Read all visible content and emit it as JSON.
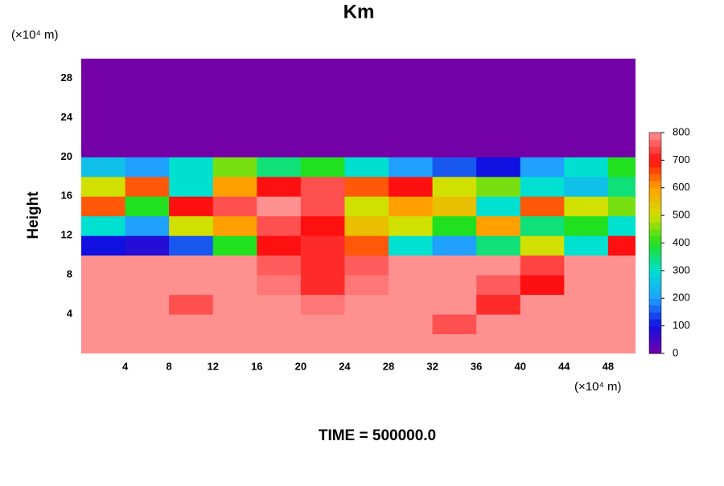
{
  "chart_data": {
    "type": "heatmap",
    "title": "Km",
    "ylabel": "Height",
    "x_unit": "(×10⁴ m)",
    "y_unit": "(×10⁴ m)",
    "footer": "TIME = 500000.0",
    "xlim": [
      0,
      50.5
    ],
    "ylim": [
      0,
      30
    ],
    "xticks": [
      4,
      8,
      12,
      16,
      20,
      24,
      28,
      32,
      36,
      40,
      44,
      48
    ],
    "yticks": [
      4,
      8,
      12,
      16,
      20,
      24,
      28
    ],
    "x": [
      2,
      6,
      10,
      14,
      18,
      22,
      26,
      30,
      34,
      38,
      42,
      46,
      50
    ],
    "y": [
      1,
      3,
      5,
      7,
      9,
      11,
      13,
      15,
      17,
      19,
      21,
      23,
      25,
      27,
      29
    ],
    "z": [
      [
        800,
        800,
        800,
        800,
        800,
        800,
        800,
        800,
        800,
        800,
        800,
        800,
        800
      ],
      [
        800,
        800,
        800,
        800,
        800,
        800,
        800,
        800,
        750,
        800,
        800,
        800,
        800
      ],
      [
        800,
        800,
        750,
        800,
        800,
        780,
        800,
        800,
        800,
        720,
        800,
        800,
        800
      ],
      [
        800,
        800,
        800,
        800,
        780,
        720,
        780,
        800,
        800,
        760,
        700,
        800,
        800
      ],
      [
        800,
        800,
        800,
        800,
        760,
        720,
        760,
        800,
        800,
        800,
        740,
        800,
        800
      ],
      [
        100,
        80,
        150,
        400,
        700,
        720,
        650,
        300,
        200,
        350,
        500,
        300,
        700
      ],
      [
        300,
        200,
        500,
        600,
        750,
        700,
        550,
        500,
        400,
        600,
        350,
        400,
        300
      ],
      [
        650,
        400,
        700,
        750,
        800,
        750,
        500,
        600,
        550,
        300,
        650,
        500,
        450
      ],
      [
        500,
        650,
        300,
        600,
        700,
        750,
        650,
        700,
        500,
        450,
        300,
        250,
        350
      ],
      [
        250,
        200,
        300,
        450,
        350,
        400,
        300,
        200,
        150,
        100,
        200,
        300,
        400
      ],
      [
        0,
        0,
        0,
        0,
        0,
        0,
        0,
        0,
        0,
        0,
        0,
        0,
        0
      ],
      [
        0,
        0,
        0,
        0,
        0,
        0,
        0,
        0,
        0,
        0,
        0,
        0,
        0
      ],
      [
        0,
        0,
        0,
        0,
        0,
        0,
        0,
        0,
        0,
        0,
        0,
        0,
        0
      ],
      [
        0,
        0,
        0,
        0,
        0,
        0,
        0,
        0,
        0,
        0,
        0,
        0,
        0
      ],
      [
        0,
        0,
        0,
        0,
        0,
        0,
        0,
        0,
        0,
        0,
        0,
        0,
        0
      ]
    ],
    "zlim": [
      0,
      800
    ],
    "zticks": [
      0,
      100,
      200,
      300,
      400,
      500,
      600,
      700,
      800
    ],
    "colors": [
      "#7400a8",
      "#1010e0",
      "#20a0ff",
      "#00e0d0",
      "#20e020",
      "#d0e000",
      "#ffa000",
      "#ff1010",
      "#ff9090"
    ]
  }
}
